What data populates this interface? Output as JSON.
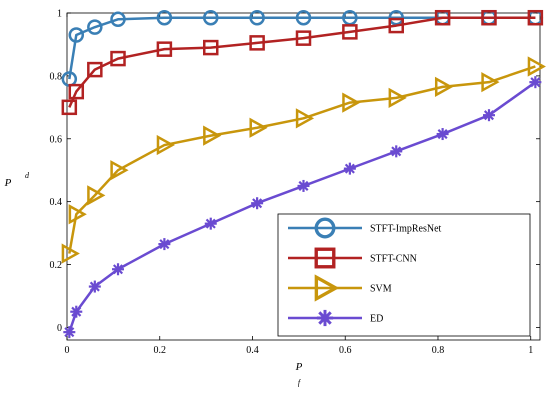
{
  "chart_data": {
    "type": "line",
    "xlabel": "P",
    "xlabel_sub": "f",
    "ylabel": "P",
    "ylabel_sub": "d",
    "xlim": [
      0,
      1.02
    ],
    "ylim": [
      -0.04,
      1.0
    ],
    "xticks": [
      "0",
      "0.2",
      "0.4",
      "0.6",
      "0.8",
      "1"
    ],
    "xtick_values": [
      0,
      0.2,
      0.4,
      0.6,
      0.8,
      1.0
    ],
    "yticks": [
      "0",
      "0.2",
      "0.4",
      "0.6",
      "0.8",
      "1"
    ],
    "ytick_values": [
      0,
      0.2,
      0.4,
      0.6,
      0.8,
      1.0
    ],
    "grid": false,
    "legend_position": "bottom-right",
    "series": [
      {
        "name": "STFT-ImpResNet",
        "color": "#3a7fb5",
        "marker": "circle",
        "x": [
          0.005,
          0.02,
          0.06,
          0.11,
          0.21,
          0.31,
          0.41,
          0.51,
          0.61,
          0.71,
          0.81,
          0.91,
          1.01
        ],
        "y": [
          0.79,
          0.93,
          0.955,
          0.98,
          0.985,
          0.985,
          0.985,
          0.985,
          0.985,
          0.985,
          0.985,
          0.985,
          0.985
        ]
      },
      {
        "name": "STFT-CNN",
        "color": "#b22222",
        "marker": "square",
        "x": [
          0.005,
          0.02,
          0.06,
          0.11,
          0.21,
          0.31,
          0.41,
          0.51,
          0.61,
          0.71,
          0.81,
          0.91,
          1.01
        ],
        "y": [
          0.7,
          0.75,
          0.82,
          0.855,
          0.885,
          0.89,
          0.905,
          0.92,
          0.94,
          0.96,
          0.985,
          0.985,
          0.985
        ]
      },
      {
        "name": "SVM",
        "color": "#c8960c",
        "marker": "triangle-right",
        "x": [
          0.005,
          0.02,
          0.06,
          0.11,
          0.21,
          0.31,
          0.41,
          0.51,
          0.61,
          0.71,
          0.81,
          0.91,
          1.01
        ],
        "y": [
          0.235,
          0.36,
          0.42,
          0.5,
          0.58,
          0.61,
          0.635,
          0.665,
          0.715,
          0.73,
          0.765,
          0.78,
          0.83
        ]
      },
      {
        "name": "ED",
        "color": "#6a4bd1",
        "marker": "asterisk",
        "x": [
          0.005,
          0.02,
          0.06,
          0.11,
          0.21,
          0.31,
          0.41,
          0.51,
          0.61,
          0.71,
          0.81,
          0.91,
          1.01
        ],
        "y": [
          -0.015,
          0.05,
          0.13,
          0.185,
          0.265,
          0.33,
          0.395,
          0.45,
          0.505,
          0.56,
          0.615,
          0.675,
          0.78
        ]
      }
    ]
  }
}
